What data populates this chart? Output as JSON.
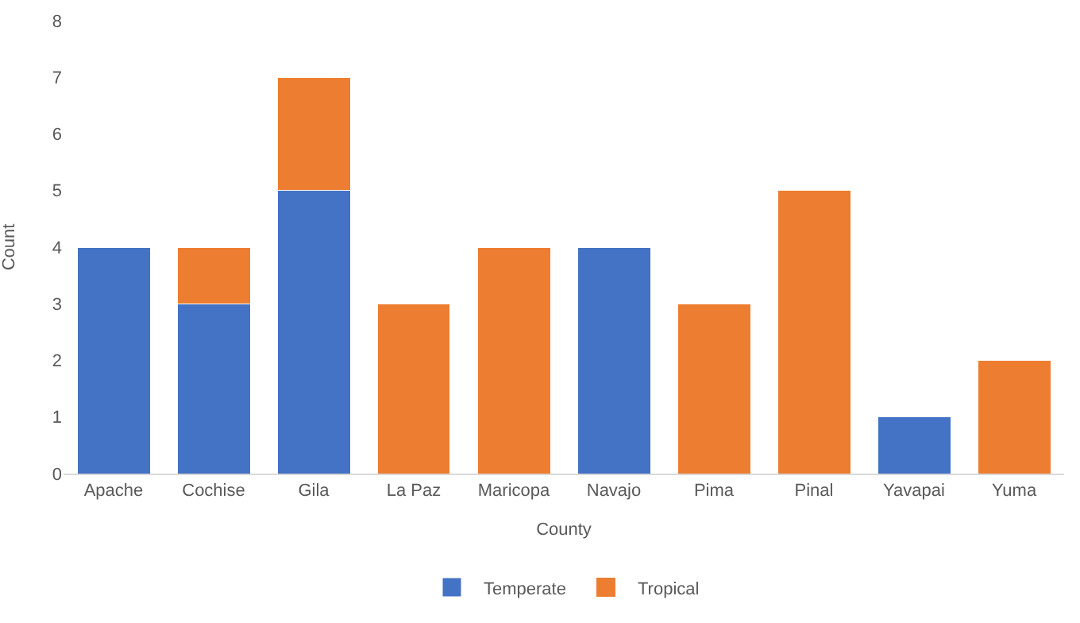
{
  "chart_data": {
    "type": "bar",
    "stacked": true,
    "xlabel": "County",
    "ylabel": "Count",
    "categories": [
      "Apache",
      "Cochise",
      "Gila",
      "La Paz",
      "Maricopa",
      "Navajo",
      "Pima",
      "Pinal",
      "Yavapai",
      "Yuma"
    ],
    "series": [
      {
        "name": "Temperate",
        "color": "#4472c4",
        "values": [
          4,
          3,
          5,
          0,
          0,
          4,
          0,
          0,
          1,
          0
        ]
      },
      {
        "name": "Tropical",
        "color": "#ed7d31",
        "values": [
          0,
          1,
          2,
          3,
          4,
          0,
          3,
          5,
          0,
          2
        ]
      }
    ],
    "ylim": [
      0,
      8
    ],
    "yticks": [
      0,
      1,
      2,
      3,
      4,
      5,
      6,
      7,
      8
    ],
    "grid": false,
    "legend": "bottom"
  }
}
